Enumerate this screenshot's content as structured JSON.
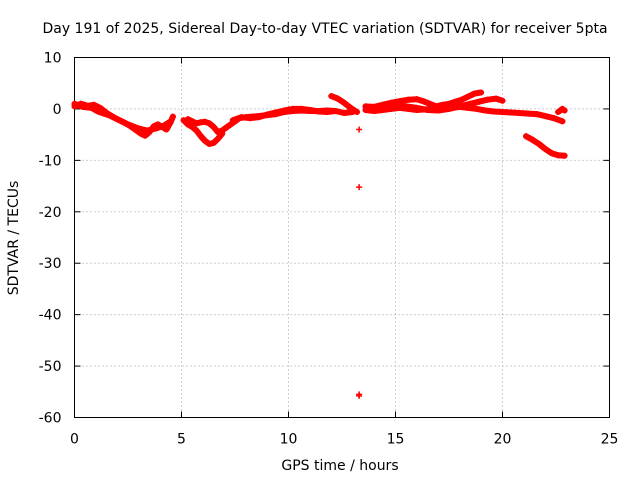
{
  "chart_data": {
    "type": "scatter",
    "title": "Day 191 of 2025, Sidereal Day-to-day VTEC variation (SDTVAR) for receiver 5pta",
    "xlabel": "GPS time / hours",
    "ylabel": "SDTVAR / TECUs",
    "xlim": [
      0,
      25
    ],
    "ylim": [
      -60,
      10
    ],
    "xticks": [
      0,
      5,
      10,
      15,
      20,
      25
    ],
    "yticks": [
      -60,
      -50,
      -40,
      -30,
      -20,
      -10,
      0,
      10
    ],
    "grid": true,
    "marker": "+",
    "series": [
      {
        "name": "SDTVAR",
        "color": "#ff0000",
        "segments": [
          [
            [
              0.0,
              0.5
            ],
            [
              0.3,
              1.0
            ],
            [
              0.6,
              0.6
            ],
            [
              0.9,
              0.8
            ],
            [
              1.2,
              0.2
            ],
            [
              1.5,
              -0.8
            ],
            [
              1.9,
              -1.8
            ],
            [
              2.3,
              -2.6
            ],
            [
              2.6,
              -3.3
            ],
            [
              2.9,
              -4.2
            ],
            [
              3.1,
              -4.8
            ],
            [
              3.3,
              -5.2
            ],
            [
              3.5,
              -4.5
            ],
            [
              3.7,
              -3.4
            ],
            [
              3.9,
              -3.0
            ],
            [
              4.1,
              -3.5
            ],
            [
              4.3,
              -4.0
            ],
            [
              4.5,
              -2.5
            ],
            [
              4.6,
              -1.5
            ]
          ],
          [
            [
              0.0,
              1.0
            ],
            [
              0.4,
              0.4
            ],
            [
              0.8,
              0.2
            ],
            [
              1.1,
              -0.5
            ],
            [
              1.6,
              -1.2
            ],
            [
              2.0,
              -2.0
            ],
            [
              2.5,
              -3.0
            ],
            [
              3.0,
              -3.8
            ],
            [
              3.4,
              -4.2
            ],
            [
              3.8,
              -3.8
            ],
            [
              4.2,
              -3.2
            ],
            [
              4.5,
              -2.4
            ]
          ],
          [
            [
              5.1,
              -2.2
            ],
            [
              5.3,
              -3.0
            ],
            [
              5.5,
              -3.5
            ],
            [
              5.7,
              -4.2
            ],
            [
              5.9,
              -5.3
            ],
            [
              6.1,
              -6.2
            ],
            [
              6.3,
              -6.8
            ],
            [
              6.5,
              -6.6
            ],
            [
              6.7,
              -5.8
            ],
            [
              6.9,
              -4.8
            ]
          ],
          [
            [
              5.3,
              -2.0
            ],
            [
              5.5,
              -2.4
            ],
            [
              5.7,
              -2.8
            ],
            [
              5.9,
              -2.6
            ],
            [
              6.1,
              -2.5
            ],
            [
              6.3,
              -2.8
            ],
            [
              6.5,
              -3.5
            ],
            [
              6.7,
              -4.5
            ],
            [
              6.9,
              -4.2
            ],
            [
              7.1,
              -3.6
            ],
            [
              7.3,
              -3.0
            ],
            [
              7.5,
              -2.4
            ],
            [
              7.7,
              -1.8
            ],
            [
              8.0,
              -1.6
            ],
            [
              8.3,
              -1.5
            ],
            [
              8.6,
              -1.4
            ],
            [
              9.0,
              -1.2
            ],
            [
              9.4,
              -1.0
            ],
            [
              9.8,
              -0.6
            ],
            [
              10.2,
              -0.4
            ],
            [
              10.6,
              -0.3
            ],
            [
              11.0,
              -0.4
            ],
            [
              11.4,
              -0.4
            ],
            [
              11.8,
              -0.3
            ],
            [
              12.2,
              -0.4
            ]
          ],
          [
            [
              7.4,
              -2.2
            ],
            [
              7.8,
              -1.6
            ],
            [
              8.2,
              -1.8
            ],
            [
              8.6,
              -1.6
            ],
            [
              9.0,
              -1.1
            ],
            [
              9.4,
              -0.7
            ],
            [
              9.8,
              -0.3
            ],
            [
              10.2,
              0.0
            ],
            [
              10.6,
              0.0
            ],
            [
              11.0,
              -0.2
            ],
            [
              11.4,
              -0.5
            ],
            [
              11.8,
              -0.6
            ],
            [
              12.2,
              -0.4
            ],
            [
              12.6,
              -0.8
            ],
            [
              13.0,
              -0.6
            ]
          ],
          [
            [
              12.0,
              2.5
            ],
            [
              12.3,
              2.0
            ],
            [
              12.6,
              1.2
            ],
            [
              12.9,
              0.2
            ],
            [
              13.2,
              -0.6
            ]
          ],
          [
            [
              13.3,
              -4.0
            ]
          ],
          [
            [
              13.3,
              -15.2
            ]
          ],
          [
            [
              13.3,
              -55.5
            ]
          ],
          [
            [
              13.3,
              -55.8
            ]
          ],
          [
            [
              13.6,
              -0.2
            ],
            [
              14.0,
              -0.4
            ],
            [
              14.4,
              -0.2
            ],
            [
              14.8,
              0.0
            ],
            [
              15.2,
              0.2
            ],
            [
              15.6,
              0.0
            ],
            [
              16.0,
              -0.2
            ],
            [
              16.4,
              -0.1
            ],
            [
              16.8,
              0.0
            ],
            [
              17.2,
              0.0
            ],
            [
              17.6,
              0.2
            ],
            [
              18.0,
              0.4
            ],
            [
              18.4,
              0.2
            ],
            [
              18.8,
              0.0
            ],
            [
              19.2,
              -0.3
            ],
            [
              19.6,
              -0.5
            ],
            [
              20.0,
              -0.6
            ],
            [
              20.4,
              -0.7
            ],
            [
              20.8,
              -0.8
            ],
            [
              21.2,
              -0.9
            ],
            [
              21.6,
              -1.0
            ],
            [
              22.0,
              -1.4
            ],
            [
              22.4,
              -1.8
            ],
            [
              22.8,
              -2.4
            ]
          ],
          [
            [
              13.6,
              0.5
            ],
            [
              14.0,
              0.4
            ],
            [
              14.4,
              0.8
            ],
            [
              14.8,
              1.2
            ],
            [
              15.2,
              1.5
            ],
            [
              15.6,
              1.8
            ],
            [
              16.0,
              1.9
            ],
            [
              16.3,
              1.5
            ],
            [
              16.6,
              1.0
            ],
            [
              16.9,
              0.5
            ],
            [
              17.2,
              0.8
            ],
            [
              17.5,
              1.0
            ],
            [
              17.8,
              1.4
            ],
            [
              18.1,
              1.8
            ],
            [
              18.4,
              2.4
            ],
            [
              18.7,
              3.0
            ],
            [
              19.0,
              3.2
            ]
          ],
          [
            [
              14.6,
              0.3
            ],
            [
              15.0,
              0.6
            ],
            [
              15.5,
              0.5
            ],
            [
              16.0,
              0.2
            ],
            [
              16.5,
              -0.2
            ],
            [
              17.0,
              -0.3
            ],
            [
              17.5,
              0.0
            ],
            [
              18.0,
              0.5
            ],
            [
              18.5,
              1.0
            ],
            [
              18.9,
              1.4
            ],
            [
              19.3,
              1.8
            ],
            [
              19.7,
              2.0
            ],
            [
              20.0,
              1.6
            ]
          ],
          [
            [
              21.1,
              -5.3
            ],
            [
              21.4,
              -6.0
            ],
            [
              21.7,
              -6.8
            ],
            [
              22.0,
              -7.8
            ],
            [
              22.3,
              -8.6
            ],
            [
              22.6,
              -9.0
            ],
            [
              22.9,
              -9.1
            ]
          ],
          [
            [
              22.6,
              -0.6
            ],
            [
              22.8,
              0.0
            ],
            [
              22.9,
              -0.3
            ]
          ]
        ]
      }
    ]
  }
}
